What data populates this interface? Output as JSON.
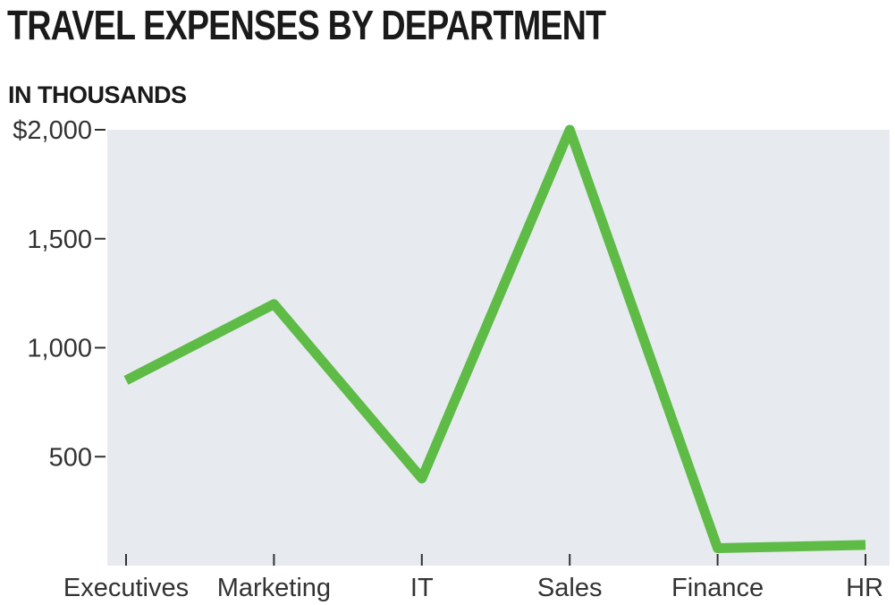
{
  "chart_data": {
    "type": "line",
    "title": "TRAVEL EXPENSES BY DEPARTMENT",
    "subtitle": "IN THOUSANDS",
    "categories": [
      "Executives",
      "Marketing",
      "IT",
      "Sales",
      "Finance",
      "HR"
    ],
    "series": [
      {
        "values": [
          850,
          1200,
          400,
          2000,
          80,
          95
        ]
      }
    ],
    "ylim": [
      0,
      2000
    ],
    "y_ticks": [
      500,
      1000,
      1500,
      2000
    ],
    "y_tick_labels": [
      "500",
      "1,000",
      "1,500",
      "$2,000"
    ],
    "grid": false,
    "colors": {
      "line": "#5dbb46",
      "plot_background": "#e7eaee",
      "axis_text": "#333333",
      "title_text": "#1a1a1a"
    }
  }
}
